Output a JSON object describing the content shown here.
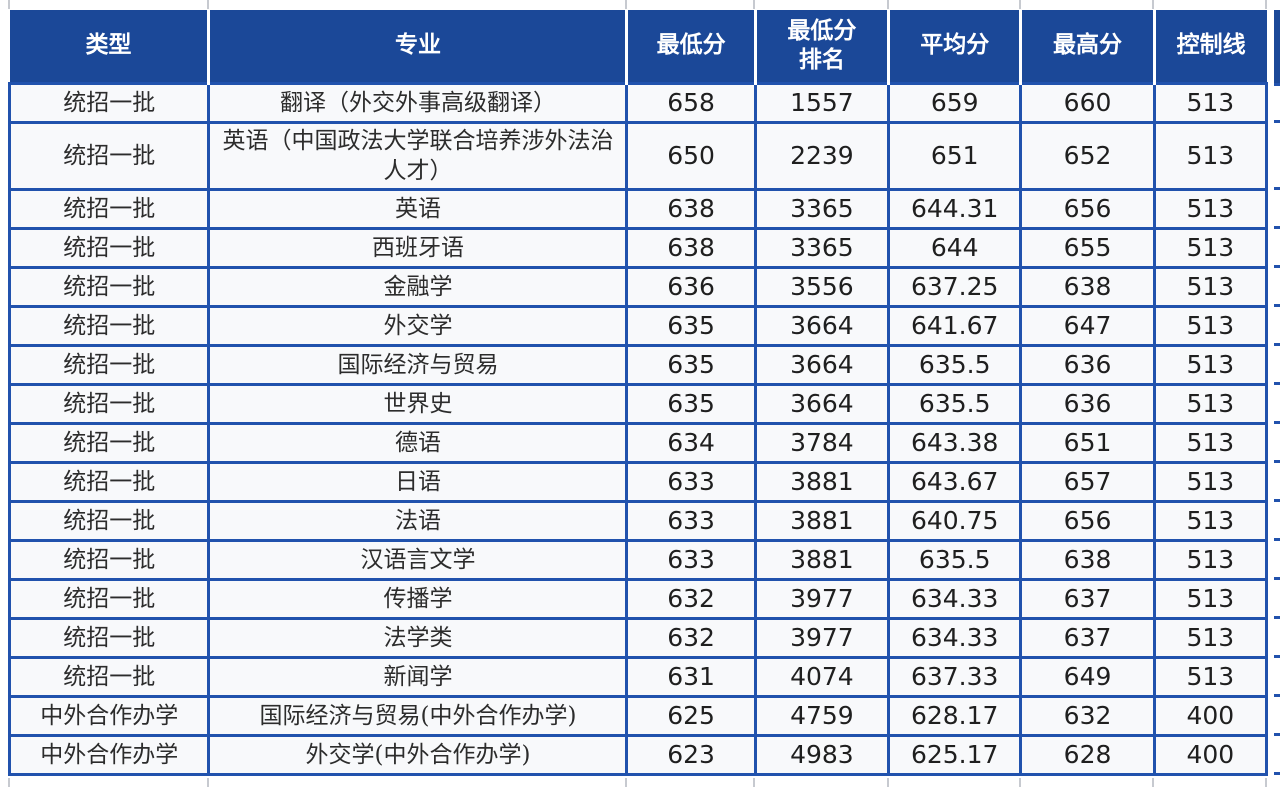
{
  "colors": {
    "header_bg": "#1b4898",
    "border": "#2152ad",
    "cell_bg": "#f8f9fb",
    "header_text": "#ffffff",
    "body_text": "#222222"
  },
  "chart_data": {
    "type": "table",
    "columns": [
      "类型",
      "专业",
      "最低分",
      "最低分\n排名",
      "平均分",
      "最高分",
      "控制线"
    ],
    "rows": [
      [
        "统招一批",
        "翻译（外交外事高级翻译）",
        "658",
        "1557",
        "659",
        "660",
        "513"
      ],
      [
        "统招一批",
        "英语（中国政法大学联合培养涉外法治人才）",
        "650",
        "2239",
        "651",
        "652",
        "513"
      ],
      [
        "统招一批",
        "英语",
        "638",
        "3365",
        "644.31",
        "656",
        "513"
      ],
      [
        "统招一批",
        "西班牙语",
        "638",
        "3365",
        "644",
        "655",
        "513"
      ],
      [
        "统招一批",
        "金融学",
        "636",
        "3556",
        "637.25",
        "638",
        "513"
      ],
      [
        "统招一批",
        "外交学",
        "635",
        "3664",
        "641.67",
        "647",
        "513"
      ],
      [
        "统招一批",
        "国际经济与贸易",
        "635",
        "3664",
        "635.5",
        "636",
        "513"
      ],
      [
        "统招一批",
        "世界史",
        "635",
        "3664",
        "635.5",
        "636",
        "513"
      ],
      [
        "统招一批",
        "德语",
        "634",
        "3784",
        "643.38",
        "651",
        "513"
      ],
      [
        "统招一批",
        "日语",
        "633",
        "3881",
        "643.67",
        "657",
        "513"
      ],
      [
        "统招一批",
        "法语",
        "633",
        "3881",
        "640.75",
        "656",
        "513"
      ],
      [
        "统招一批",
        "汉语言文学",
        "633",
        "3881",
        "635.5",
        "638",
        "513"
      ],
      [
        "统招一批",
        "传播学",
        "632",
        "3977",
        "634.33",
        "637",
        "513"
      ],
      [
        "统招一批",
        "法学类",
        "632",
        "3977",
        "634.33",
        "637",
        "513"
      ],
      [
        "统招一批",
        "新闻学",
        "631",
        "4074",
        "637.33",
        "649",
        "513"
      ],
      [
        "中外合作办学",
        "国际经济与贸易(中外合作办学)",
        "625",
        "4759",
        "628.17",
        "632",
        "400"
      ],
      [
        "中外合作办学",
        "外交学(中外合作办学)",
        "623",
        "4983",
        "625.17",
        "628",
        "400"
      ]
    ]
  }
}
